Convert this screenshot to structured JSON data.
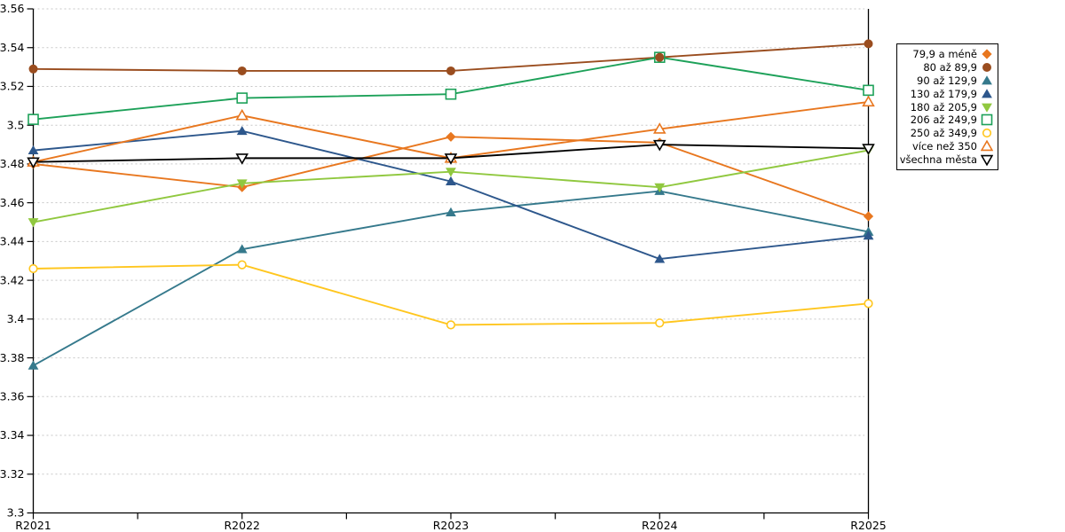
{
  "chart_data": {
    "type": "line",
    "title": "",
    "x_axis": {
      "categories": [
        "R2021",
        "R2022",
        "R2023",
        "R2024",
        "R2025"
      ],
      "minor_ticks_between_categories": true
    },
    "y_axis": {
      "min": 3.3,
      "max": 3.56,
      "step": 0.02,
      "tick_labels_top_to_bottom": [
        "3.56",
        "3.54",
        "3.52",
        "3.5",
        "3.48",
        "3.46",
        "3.44",
        "3.42",
        "3.4",
        "3.38",
        "3.36",
        "3.34",
        "3.32",
        "3.3"
      ]
    },
    "grid": {
      "horizontal": true,
      "style": "dashed",
      "color": "#C7C7C7"
    },
    "legend": {
      "position": "right",
      "bordered": true,
      "marker_side": "right"
    },
    "series": [
      {
        "name": "79,9 a méně",
        "color": "#E8771F",
        "marker": "diamond",
        "marker_fill": "solid",
        "values": [
          3.48,
          3.468,
          3.494,
          3.491,
          3.453
        ]
      },
      {
        "name": "80 až 89,9",
        "color": "#9A4D1F",
        "marker": "circle",
        "marker_fill": "solid",
        "values": [
          3.529,
          3.528,
          3.528,
          3.535,
          3.542
        ]
      },
      {
        "name": "90 až 129,9",
        "color": "#35798C",
        "marker": "triangle-up",
        "marker_fill": "solid",
        "values": [
          3.376,
          3.436,
          3.455,
          3.466,
          3.445
        ]
      },
      {
        "name": "130 až 179,9",
        "color": "#2D578C",
        "marker": "triangle-up",
        "marker_fill": "solid",
        "values": [
          3.487,
          3.497,
          3.471,
          3.431,
          3.443
        ]
      },
      {
        "name": "180 až 205,9",
        "color": "#90C83F",
        "marker": "triangle-down",
        "marker_fill": "solid",
        "values": [
          3.45,
          3.47,
          3.476,
          3.468,
          3.487
        ]
      },
      {
        "name": "206 až 249,9",
        "color": "#1DA159",
        "marker": "square",
        "marker_fill": "open",
        "values": [
          3.503,
          3.514,
          3.516,
          3.535,
          3.518
        ]
      },
      {
        "name": "250 až 349,9",
        "color": "#FFC61E",
        "marker": "circle",
        "marker_fill": "open",
        "values": [
          3.426,
          3.428,
          3.397,
          3.398,
          3.408
        ]
      },
      {
        "name": "více než 350",
        "color": "#E8771F",
        "marker": "triangle-up",
        "marker_fill": "open",
        "values": [
          3.481,
          3.505,
          3.483,
          3.498,
          3.512
        ]
      },
      {
        "name": "všechna města",
        "color": "#000000",
        "marker": "triangle-down",
        "marker_fill": "open",
        "values": [
          3.481,
          3.483,
          3.483,
          3.49,
          3.488
        ]
      }
    ]
  }
}
